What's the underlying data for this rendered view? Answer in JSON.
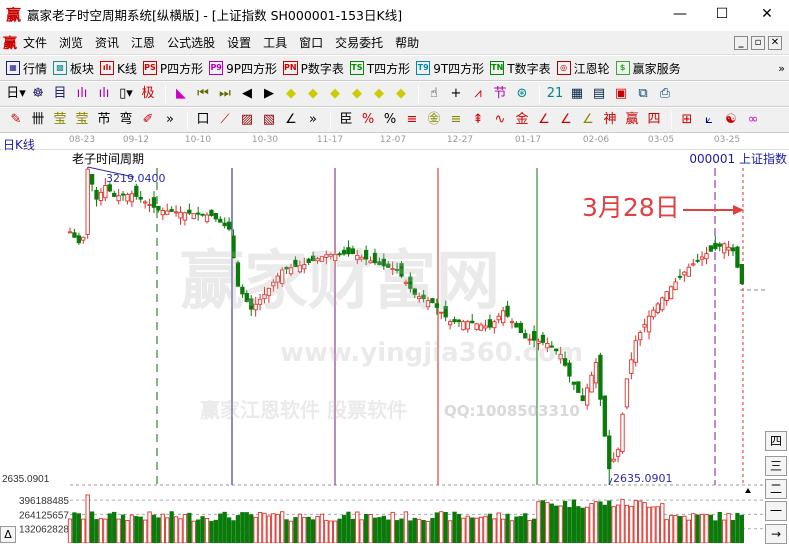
{
  "window": {
    "title": "赢家老子时空周期系统[纵横版] - [上证指数  SH000001-153日K线]",
    "logo": "赢",
    "minimize": "—",
    "maximize": "☐",
    "close": "✕"
  },
  "menu": {
    "logo": "赢",
    "items": [
      "文件",
      "浏览",
      "资讯",
      "江恩",
      "公式选股",
      "设置",
      "工具",
      "窗口",
      "交易委托",
      "帮助"
    ],
    "mdi": [
      "_",
      "▫",
      "✕"
    ]
  },
  "toolbar1": {
    "items": [
      {
        "icon": "▦",
        "label": "行情",
        "color": "#1a1a80"
      },
      {
        "icon": "▩",
        "label": "板块",
        "color": "#1a8a8a"
      },
      {
        "icon": "ılı",
        "label": "K线",
        "color": "#c00"
      },
      {
        "icon": "PS",
        "label": "P四方形",
        "color": "#c00"
      },
      {
        "icon": "P9",
        "label": "9P四方形",
        "color": "#b0b"
      },
      {
        "icon": "PN",
        "label": "P数字表",
        "color": "#c00"
      },
      {
        "icon": "TS",
        "label": "T四方形",
        "color": "#080"
      },
      {
        "icon": "T9",
        "label": "9T四方形",
        "color": "#08a"
      },
      {
        "icon": "TN",
        "label": "T数字表",
        "color": "#080"
      },
      {
        "icon": "◎",
        "label": "江恩轮",
        "color": "#a00"
      },
      {
        "icon": "$",
        "label": "赢家服务",
        "color": "#3a3"
      }
    ],
    "more": "»"
  },
  "toolbar2": {
    "icons": [
      {
        "name": "day-period",
        "g": "日▾",
        "c": "#000"
      },
      {
        "name": "pattern",
        "g": "☸",
        "c": "#226"
      },
      {
        "name": "auto",
        "g": "目",
        "c": "#226"
      },
      {
        "name": "wave3",
        "g": "ılı",
        "c": "#a0a"
      },
      {
        "name": "wave9",
        "g": "ılı",
        "c": "#a0a"
      },
      {
        "name": "candle-type",
        "g": "▯▾",
        "c": "#000"
      },
      {
        "name": "extreme",
        "g": "极",
        "c": "#c00"
      },
      {
        "name": "flag",
        "g": "◣",
        "c": "#c0c"
      },
      {
        "name": "first",
        "g": "⏮",
        "c": "#660"
      },
      {
        "name": "last",
        "g": "⏭",
        "c": "#660"
      },
      {
        "name": "left",
        "g": "◀",
        "c": "#000"
      },
      {
        "name": "right",
        "g": "▶",
        "c": "#000"
      },
      {
        "name": "diamond-left",
        "g": "◆",
        "c": "#cc0"
      },
      {
        "name": "diamond-right",
        "g": "◆",
        "c": "#cc0"
      },
      {
        "name": "diamond-expand",
        "g": "◆",
        "c": "#cc0"
      },
      {
        "name": "diamond-shrink",
        "g": "◆",
        "c": "#cc0"
      },
      {
        "name": "diamond-up",
        "g": "◆",
        "c": "#cc0"
      },
      {
        "name": "diamond-down",
        "g": "◆",
        "c": "#cc0"
      },
      {
        "name": "hand",
        "g": "☝",
        "c": "#000"
      },
      {
        "name": "crosshair",
        "g": "+",
        "c": "#000"
      },
      {
        "name": "line",
        "g": "⩘",
        "c": "#c00"
      },
      {
        "name": "section",
        "g": "节",
        "c": "#a0a"
      },
      {
        "name": "cycle",
        "g": "⊛",
        "c": "#088"
      },
      {
        "name": "calendar",
        "g": "21",
        "c": "#088"
      },
      {
        "name": "calculator",
        "g": "▦",
        "c": "#024"
      },
      {
        "name": "notes",
        "g": "▤",
        "c": "#024"
      },
      {
        "name": "save",
        "g": "▣",
        "c": "#c00"
      },
      {
        "name": "network",
        "g": "⧉",
        "c": "#046"
      },
      {
        "name": "print",
        "g": "⎙",
        "c": "#046"
      }
    ]
  },
  "toolbar3": {
    "icons": [
      {
        "name": "pen",
        "g": "✎",
        "c": "#c00"
      },
      {
        "name": "grid-lines",
        "g": "卌",
        "c": "#000"
      },
      {
        "name": "gold1",
        "g": "莹",
        "c": "#880"
      },
      {
        "name": "gold2",
        "g": "莹",
        "c": "#880"
      },
      {
        "name": "fib",
        "g": "芇",
        "c": "#000"
      },
      {
        "name": "spiral",
        "g": "弯",
        "c": "#000"
      },
      {
        "name": "pen-ruler",
        "g": "✐",
        "c": "#c00"
      },
      {
        "name": "more1",
        "g": "»",
        "c": "#000"
      },
      {
        "name": "box",
        "g": "口",
        "c": "#000"
      },
      {
        "name": "fan",
        "g": "⟋",
        "c": "#c00"
      },
      {
        "name": "square-fan",
        "g": "▨",
        "c": "#800"
      },
      {
        "name": "square-fan2",
        "g": "▧",
        "c": "#800"
      },
      {
        "name": "angle",
        "g": "∠",
        "c": "#000"
      },
      {
        "name": "more2",
        "g": "»",
        "c": "#000"
      },
      {
        "name": "ruler",
        "g": "臣",
        "c": "#000"
      },
      {
        "name": "percent-line",
        "g": "%",
        "c": "#c00"
      },
      {
        "name": "percent",
        "g": "%",
        "c": "#000"
      },
      {
        "name": "percent-levels",
        "g": "≡",
        "c": "#c00"
      },
      {
        "name": "gold-circle",
        "g": "㊎",
        "c": "#880"
      },
      {
        "name": "gold-levels",
        "g": "≡",
        "c": "#880"
      },
      {
        "name": "rocket",
        "g": "⇞",
        "c": "#c00"
      },
      {
        "name": "wave",
        "g": "∿",
        "c": "#c00"
      },
      {
        "name": "gold-box",
        "g": "金",
        "c": "#c00"
      },
      {
        "name": "j-fan",
        "g": "∠",
        "c": "#c00"
      },
      {
        "name": "f-fan",
        "g": "∠",
        "c": "#c00"
      },
      {
        "name": "gold-fan",
        "g": "∠",
        "c": "#880"
      },
      {
        "name": "god-fan",
        "g": "神",
        "c": "#c00"
      },
      {
        "name": "win-fan",
        "g": "赢",
        "c": "#c00"
      },
      {
        "name": "four-fan",
        "g": "四",
        "c": "#c00"
      },
      {
        "name": "grid-toggle",
        "g": "⊞",
        "c": "#c00"
      },
      {
        "name": "chart-lines",
        "g": "⟀",
        "c": "#008"
      },
      {
        "name": "yin-yang",
        "g": "☯",
        "c": "#c00"
      },
      {
        "name": "infinity",
        "g": "∞",
        "c": "#c0c"
      }
    ]
  },
  "axis": {
    "dates": [
      "08-23",
      "09-12",
      "10-10",
      "10-30",
      "11-17",
      "12-07",
      "12-27",
      "01-17",
      "02-06",
      "03-05",
      "03-25"
    ]
  },
  "chart": {
    "period_label": "日K线",
    "study_label": "老子时间周期",
    "symbol": "000001  上证指数",
    "high_label": "3219.0400",
    "low_label": "2635.0901",
    "low_axis_label": "2635.0901",
    "annotation": "3月28日",
    "volume_ticks": [
      "396188485",
      "264125657",
      "132062828"
    ],
    "colors": {
      "up": "#e0302a",
      "down": "#0a7a0a",
      "annotation": "#e04040",
      "price_label": "#2a2aa8"
    },
    "cycle_line_colors": [
      "#0a6a0a",
      "#1a1a6a",
      "#7a1a7a",
      "#c02020",
      "#0a7a0a",
      "#7a1a9a",
      "#e03030"
    ],
    "price_path": [
      [
        0,
        3100
      ],
      [
        2,
        3080
      ],
      [
        3,
        3090
      ],
      [
        4,
        3215
      ],
      [
        6,
        3160
      ],
      [
        8,
        3185
      ],
      [
        10,
        3165
      ],
      [
        14,
        3170
      ],
      [
        20,
        3140
      ],
      [
        26,
        3135
      ],
      [
        32,
        3130
      ],
      [
        36,
        3105
      ],
      [
        38,
        3000
      ],
      [
        41,
        2958
      ],
      [
        44,
        2985
      ],
      [
        48,
        3030
      ],
      [
        53,
        3040
      ],
      [
        58,
        3058
      ],
      [
        64,
        3060
      ],
      [
        70,
        3040
      ],
      [
        74,
        3030
      ],
      [
        78,
        2985
      ],
      [
        82,
        2970
      ],
      [
        86,
        2935
      ],
      [
        90,
        2935
      ],
      [
        95,
        2925
      ],
      [
        98,
        2955
      ],
      [
        103,
        2905
      ],
      [
        108,
        2895
      ],
      [
        111,
        2875
      ],
      [
        113,
        2835
      ],
      [
        116,
        2790
      ],
      [
        119,
        2860
      ],
      [
        121,
        2725
      ],
      [
        122,
        2665
      ],
      [
        124,
        2700
      ],
      [
        126,
        2830
      ],
      [
        128,
        2900
      ],
      [
        131,
        2945
      ],
      [
        135,
        2990
      ],
      [
        140,
        3035
      ],
      [
        144,
        3060
      ],
      [
        148,
        3078
      ],
      [
        150,
        3065
      ],
      [
        152,
        3005
      ]
    ]
  },
  "side_buttons": [
    "四",
    "三",
    "二",
    "一",
    "→"
  ],
  "bottom_button": "Δ",
  "watermark": [
    "赢家财富网",
    "赢家江恩软件 股票软件",
    "www.yingjia360.com",
    "QQ:1008503310"
  ]
}
